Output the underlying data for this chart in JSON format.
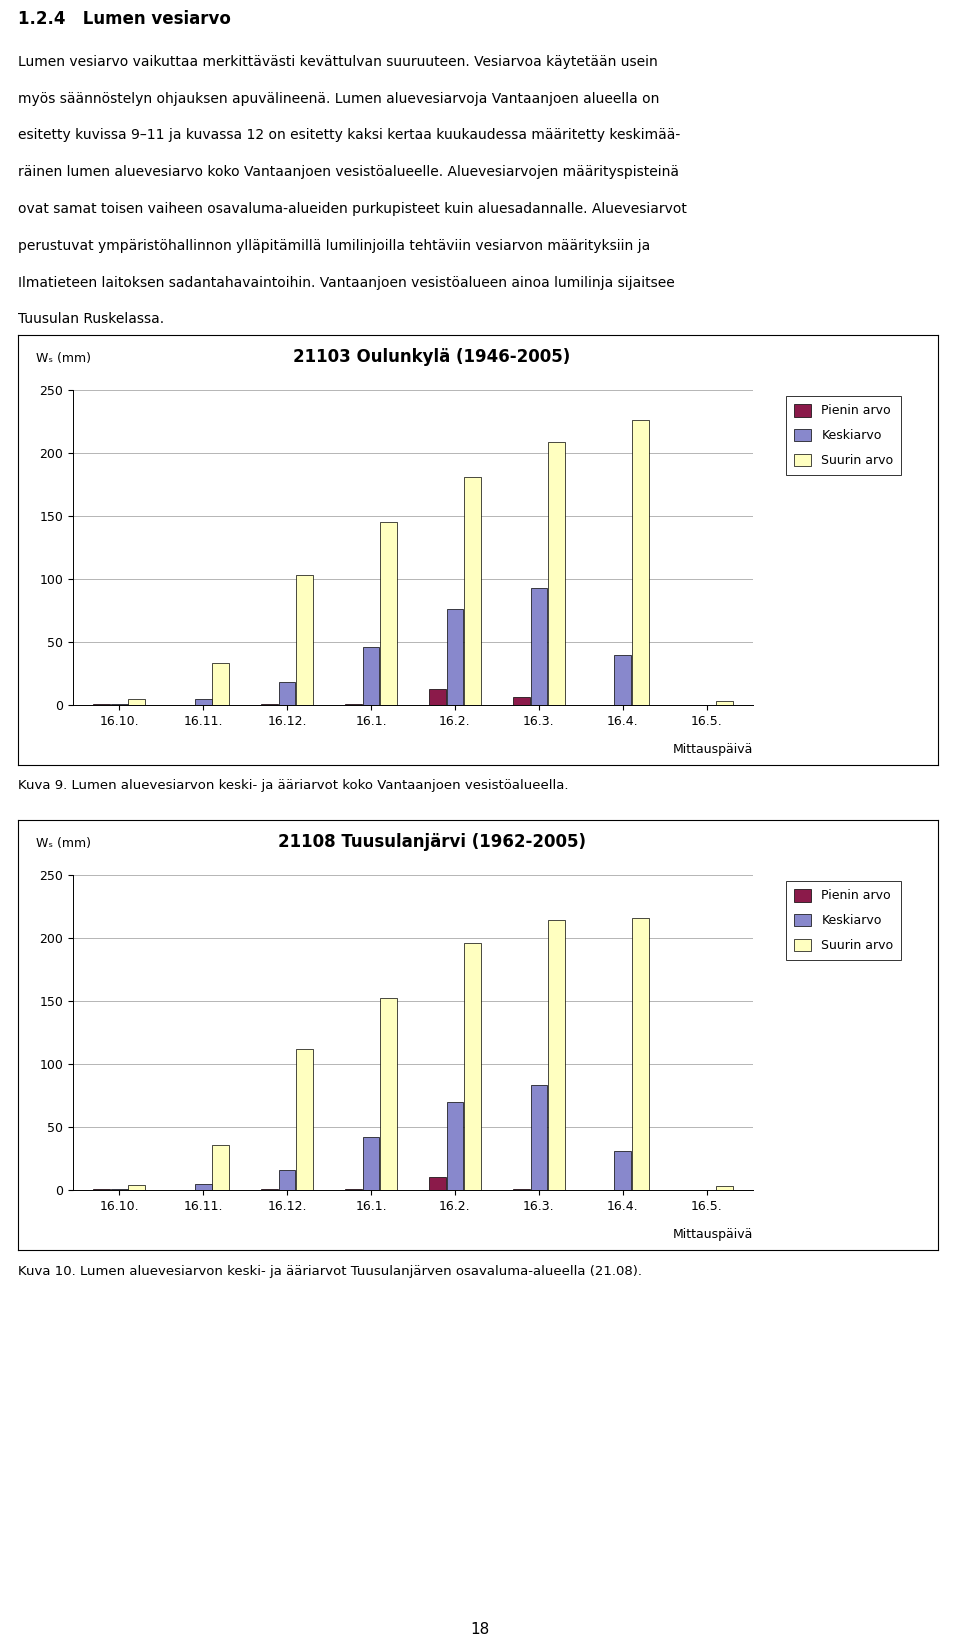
{
  "title_section": "1.2.4   Lumen vesiarvo",
  "body_lines": [
    "Lumen vesiarvo vaikuttaa merkittävästi kevättulvan suuruuteen. Vesiarvoa käytetään usein",
    "myös säännöstelyn ohjauksen apuvälineenä. Lumen aluevesiarvoja Vantaanjoen alueella on",
    "esitetty kuvissa 9–11 ja kuvassa 12 on esitetty kaksi kertaa kuukaudessa määritetty keskimää-",
    "räinen lumen aluevesiarvo koko Vantaanjoen vesistöalueelle. Aluevesiarvojen määrityspisteinä",
    "ovat samat toisen vaiheen osavaluma-alueiden purkupisteet kuin aluesadannalle. Aluevesiarvot",
    "perustuvat ympäristöhallinnon ylläpitämillä lumilinjoilla tehtäviin vesiarvon määrityksiin ja",
    "Ilmatieteen laitoksen sadantahavaintoihin. Vantaanjoen vesistöalueen ainoa lumilinja sijaitsee",
    "Tuusulan Ruskelassa."
  ],
  "chart1": {
    "title": "21103 Oulunkylä (1946-2005)",
    "ylabel": "Wₛ (mm)",
    "xlabel": "Mittauspäivä",
    "categories": [
      "16.10.",
      "16.11.",
      "16.12.",
      "16.1.",
      "16.2.",
      "16.3.",
      "16.4.",
      "16.5."
    ],
    "pienin": [
      1,
      0,
      1,
      1,
      13,
      6,
      0,
      0
    ],
    "keskiarvo": [
      1,
      5,
      18,
      46,
      76,
      93,
      40,
      0
    ],
    "suurin": [
      5,
      33,
      103,
      145,
      181,
      209,
      226,
      3
    ],
    "ylim": [
      0,
      250
    ],
    "yticks": [
      0,
      50,
      100,
      150,
      200,
      250
    ]
  },
  "chart1_caption": "Kuva 9. Lumen aluevesiarvon keski- ja ääriarvot koko Vantaanjoen vesistöalueella.",
  "chart2": {
    "title": "21108 Tuusulanjärvi (1962-2005)",
    "ylabel": "Wₛ (mm)",
    "xlabel": "Mittauspäivä",
    "categories": [
      "16.10.",
      "16.11.",
      "16.12.",
      "16.1.",
      "16.2.",
      "16.3.",
      "16.4.",
      "16.5."
    ],
    "pienin": [
      1,
      0,
      1,
      1,
      10,
      1,
      0,
      0
    ],
    "keskiarvo": [
      1,
      5,
      16,
      42,
      70,
      83,
      31,
      0
    ],
    "suurin": [
      4,
      36,
      112,
      152,
      196,
      214,
      216,
      3
    ],
    "ylim": [
      0,
      250
    ],
    "yticks": [
      0,
      50,
      100,
      150,
      200,
      250
    ]
  },
  "chart2_caption": "Kuva 10. Lumen aluevesiarvon keski- ja ääriarvot Tuusulanjärven osavaluma-alueella (21.08).",
  "color_pienin": "#8B1A4A",
  "color_keskiarvo": "#8888CC",
  "color_suurin": "#FFFFC0",
  "bg_color": "#FFFFFF",
  "page_number": "18",
  "legend_labels": [
    "Pienin arvo",
    "Keskiarvo",
    "Suurin arvo"
  ]
}
